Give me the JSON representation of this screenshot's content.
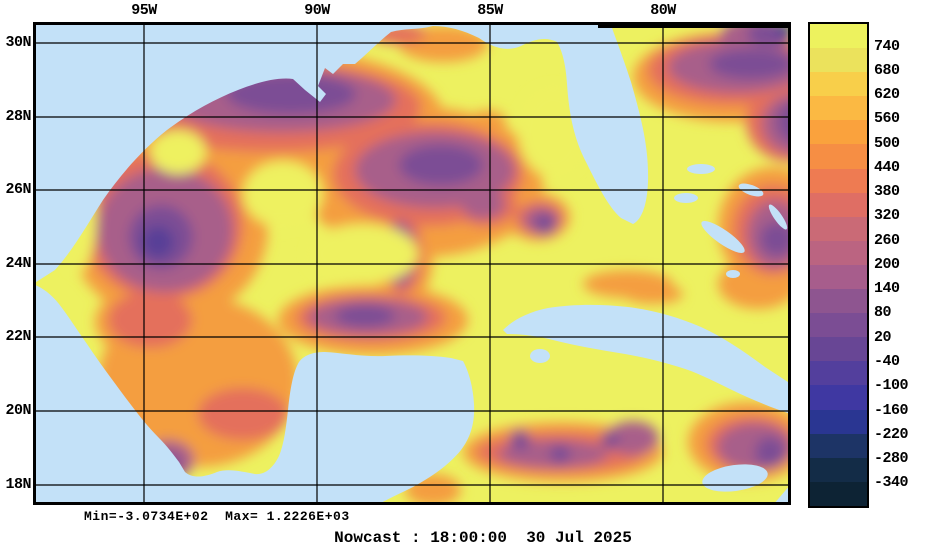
{
  "figure": {
    "caption": "Nowcast : 18:00:00  30 Jul 2025",
    "stats": "Min=-3.0734E+02  Max= 1.2226E+03",
    "background": "#ffffff"
  },
  "map": {
    "lon_ticks": [
      "95W",
      "90W",
      "85W",
      "80W"
    ],
    "lat_ticks": [
      "30N",
      "28N",
      "26N",
      "24N",
      "22N",
      "20N",
      "18N"
    ],
    "land_color": "#c3e1f8",
    "ocean_base_color": "#edf160",
    "frame_color": "#000000",
    "gridline_color": "#000000"
  },
  "colorbar": {
    "tick_labels": [
      "740",
      "680",
      "620",
      "560",
      "500",
      "440",
      "380",
      "320",
      "260",
      "200",
      "140",
      "80",
      "20",
      "-40",
      "-100",
      "-160",
      "-220",
      "-280",
      "-340"
    ],
    "segment_colors": [
      "#edf25e",
      "#ebe25c",
      "#f8cf4a",
      "#fbb943",
      "#faa23d",
      "#f68e44",
      "#ee7b52",
      "#df6e64",
      "#ca6a76",
      "#bb6481",
      "#a75d8c",
      "#8e5590",
      "#7b4d94",
      "#684695",
      "#533f9d",
      "#3f38a2",
      "#2a3692",
      "#1d3466",
      "#132c47",
      "#0d2334"
    ]
  },
  "chart_data": {
    "type": "heatmap",
    "title": "Nowcast : 18:00:00  30 Jul 2025",
    "x_tick_labels": [
      "95W",
      "90W",
      "85W",
      "80W"
    ],
    "y_tick_labels": [
      "30N",
      "28N",
      "26N",
      "24N",
      "22N",
      "20N",
      "18N"
    ],
    "x_axis": "longitude (deg W)",
    "y_axis": "latitude (deg N)",
    "grid": true,
    "legend_position": "right-colorbar",
    "colorbar": {
      "tick_values": [
        740,
        680,
        620,
        560,
        500,
        440,
        380,
        320,
        260,
        200,
        140,
        80,
        20,
        -40,
        -100,
        -160,
        -220,
        -280,
        -340
      ],
      "tick_step": 60,
      "segment_colors": [
        "#edf25e",
        "#ebe25c",
        "#f8cf4a",
        "#fbb943",
        "#faa23d",
        "#f68e44",
        "#ee7b52",
        "#df6e64",
        "#ca6a76",
        "#bb6481",
        "#a75d8c",
        "#8e5590",
        "#7b4d94",
        "#684695",
        "#533f9d",
        "#3f38a2",
        "#2a3692",
        "#1d3466",
        "#132c47",
        "#0d2334"
      ]
    },
    "data_min": -307.34,
    "data_max": 1222.6,
    "min_label": "Min=-3.0734E+02",
    "max_label": "Max= 1.2226E+03"
  }
}
